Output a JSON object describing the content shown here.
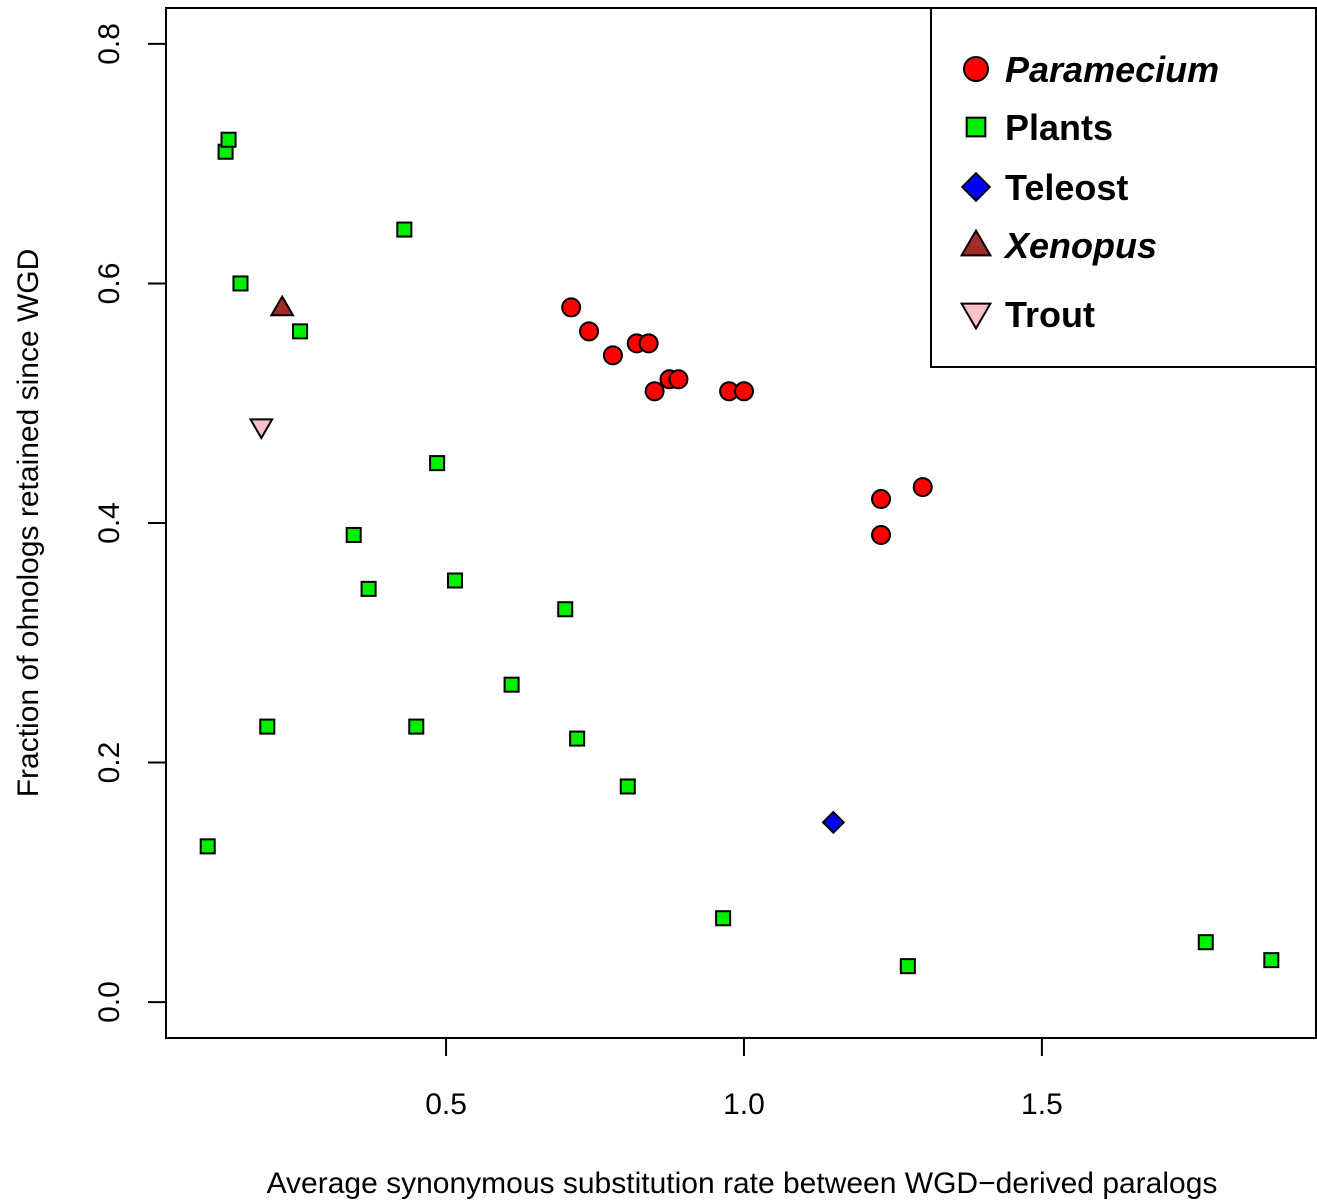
{
  "chart_data": {
    "type": "scatter",
    "title": "",
    "xlabel": "Average synonymous substitution rate between WGD−derived paralogs",
    "ylabel": "Fraction of ohnologs retained since WGD",
    "xlim": [
      0.03,
      1.96
    ],
    "ylim": [
      -0.03,
      0.83
    ],
    "x_ticks": [
      0.5,
      1.0,
      1.5
    ],
    "x_tick_labels": [
      "0.5",
      "1.0",
      "1.5"
    ],
    "y_ticks": [
      0.0,
      0.2,
      0.4,
      0.6,
      0.8
    ],
    "y_tick_labels": [
      "0.0",
      "0.2",
      "0.4",
      "0.6",
      "0.8"
    ],
    "grid": false,
    "legend_position": "top-right",
    "series": [
      {
        "name": "Paramecium",
        "italic": true,
        "marker": "circle",
        "color": "#ff0000",
        "points": [
          [
            0.71,
            0.58
          ],
          [
            0.74,
            0.56
          ],
          [
            0.78,
            0.54
          ],
          [
            0.82,
            0.55
          ],
          [
            0.84,
            0.55
          ],
          [
            0.85,
            0.51
          ],
          [
            0.875,
            0.52
          ],
          [
            0.89,
            0.52
          ],
          [
            0.975,
            0.51
          ],
          [
            1.0,
            0.51
          ],
          [
            1.23,
            0.42
          ],
          [
            1.23,
            0.39
          ],
          [
            1.3,
            0.43
          ]
        ]
      },
      {
        "name": "Plants",
        "italic": false,
        "marker": "square",
        "color": "#00ee00",
        "points": [
          [
            0.1,
            0.13
          ],
          [
            0.13,
            0.71
          ],
          [
            0.135,
            0.72
          ],
          [
            0.155,
            0.6
          ],
          [
            0.2,
            0.23
          ],
          [
            0.255,
            0.56
          ],
          [
            0.345,
            0.39
          ],
          [
            0.37,
            0.345
          ],
          [
            0.43,
            0.645
          ],
          [
            0.45,
            0.23
          ],
          [
            0.485,
            0.45
          ],
          [
            0.515,
            0.352
          ],
          [
            0.61,
            0.265
          ],
          [
            0.7,
            0.328
          ],
          [
            0.72,
            0.22
          ],
          [
            0.805,
            0.18
          ],
          [
            0.965,
            0.07
          ],
          [
            1.275,
            0.03
          ],
          [
            1.775,
            0.05
          ],
          [
            1.885,
            0.035
          ]
        ]
      },
      {
        "name": "Teleost",
        "italic": false,
        "marker": "diamond",
        "color": "#0000ff",
        "points": [
          [
            1.15,
            0.15
          ]
        ]
      },
      {
        "name": "Xenopus",
        "italic": true,
        "marker": "triangle-up",
        "color": "#a52a2a",
        "points": [
          [
            0.225,
            0.58
          ]
        ]
      },
      {
        "name": "Trout",
        "italic": false,
        "marker": "triangle-down",
        "color": "#ffc0cb",
        "points": [
          [
            0.19,
            0.48
          ]
        ]
      }
    ]
  }
}
